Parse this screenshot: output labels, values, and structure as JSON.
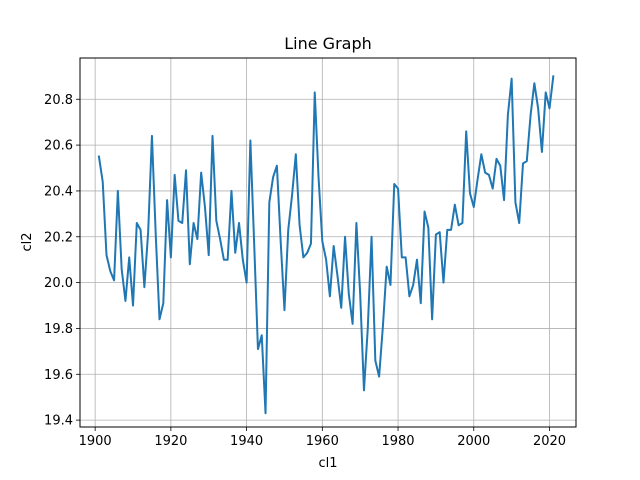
{
  "chart_data": {
    "type": "line",
    "title": "Line Graph",
    "xlabel": "cl1",
    "ylabel": "cl2",
    "xlim": [
      1896,
      2027
    ],
    "ylim": [
      19.37,
      20.98
    ],
    "xticks": [
      1900,
      1920,
      1940,
      1960,
      1980,
      2000,
      2020
    ],
    "xtick_labels": [
      "1900",
      "1920",
      "1940",
      "1960",
      "1980",
      "2000",
      "2020"
    ],
    "yticks": [
      19.4,
      19.6,
      19.8,
      20.0,
      20.2,
      20.4,
      20.6,
      20.8
    ],
    "ytick_labels": [
      "19.4",
      "19.6",
      "19.8",
      "20.0",
      "20.2",
      "20.4",
      "20.6",
      "20.8"
    ],
    "grid": true,
    "line_color": "#1f77b4",
    "series": [
      {
        "x": [
          1901,
          1902,
          1903,
          1904,
          1905,
          1906,
          1907,
          1908,
          1909,
          1910,
          1911,
          1912,
          1913,
          1914,
          1915,
          1916,
          1917,
          1918,
          1919,
          1920,
          1921,
          1922,
          1923,
          1924,
          1925,
          1926,
          1927,
          1928,
          1929,
          1930,
          1931,
          1932,
          1933,
          1934,
          1935,
          1936,
          1937,
          1938,
          1939,
          1940,
          1941,
          1942,
          1943,
          1944,
          1945,
          1946,
          1947,
          1948,
          1949,
          1950,
          1951,
          1952,
          1953,
          1954,
          1955,
          1956,
          1957,
          1958,
          1959,
          1960,
          1961,
          1962,
          1963,
          1964,
          1965,
          1966,
          1967,
          1968,
          1969,
          1970,
          1971,
          1972,
          1973,
          1974,
          1975,
          1976,
          1977,
          1978,
          1979,
          1980,
          1981,
          1982,
          1983,
          1984,
          1985,
          1986,
          1987,
          1988,
          1989,
          1990,
          1991,
          1992,
          1993,
          1994,
          1995,
          1996,
          1997,
          1998,
          1999,
          2000,
          2001,
          2002,
          2003,
          2004,
          2005,
          2006,
          2007,
          2008,
          2009,
          2010,
          2011,
          2012,
          2013,
          2014,
          2015,
          2016,
          2017,
          2018,
          2019,
          2020,
          2021
        ],
        "values": [
          20.55,
          20.44,
          20.12,
          20.05,
          20.01,
          20.4,
          20.06,
          19.92,
          20.11,
          19.9,
          20.26,
          20.23,
          19.98,
          20.22,
          20.64,
          20.21,
          19.84,
          19.91,
          20.36,
          20.11,
          20.47,
          20.27,
          20.26,
          20.49,
          20.08,
          20.26,
          20.19,
          20.48,
          20.33,
          20.12,
          20.64,
          20.27,
          20.19,
          20.1,
          20.1,
          20.4,
          20.13,
          20.26,
          20.1,
          20.0,
          20.62,
          20.17,
          19.71,
          19.77,
          19.43,
          20.35,
          20.46,
          20.51,
          20.18,
          19.88,
          20.23,
          20.38,
          20.56,
          20.25,
          20.11,
          20.13,
          20.17,
          20.83,
          20.46,
          20.18,
          20.1,
          19.94,
          20.16,
          20.03,
          19.89,
          20.2,
          19.95,
          19.82,
          20.26,
          19.95,
          19.53,
          19.8,
          20.2,
          19.66,
          19.59,
          19.81,
          20.07,
          19.99,
          20.43,
          20.41,
          20.11,
          20.11,
          19.94,
          19.99,
          20.1,
          19.91,
          20.31,
          20.24,
          19.84,
          20.21,
          20.22,
          20.0,
          20.23,
          20.23,
          20.34,
          20.25,
          20.26,
          20.66,
          20.39,
          20.33,
          20.45,
          20.56,
          20.48,
          20.47,
          20.41,
          20.54,
          20.51,
          20.36,
          20.73,
          20.89,
          20.35,
          20.26,
          20.52,
          20.53,
          20.73,
          20.87,
          20.76,
          20.57,
          20.83,
          20.76,
          20.9
        ]
      }
    ]
  }
}
